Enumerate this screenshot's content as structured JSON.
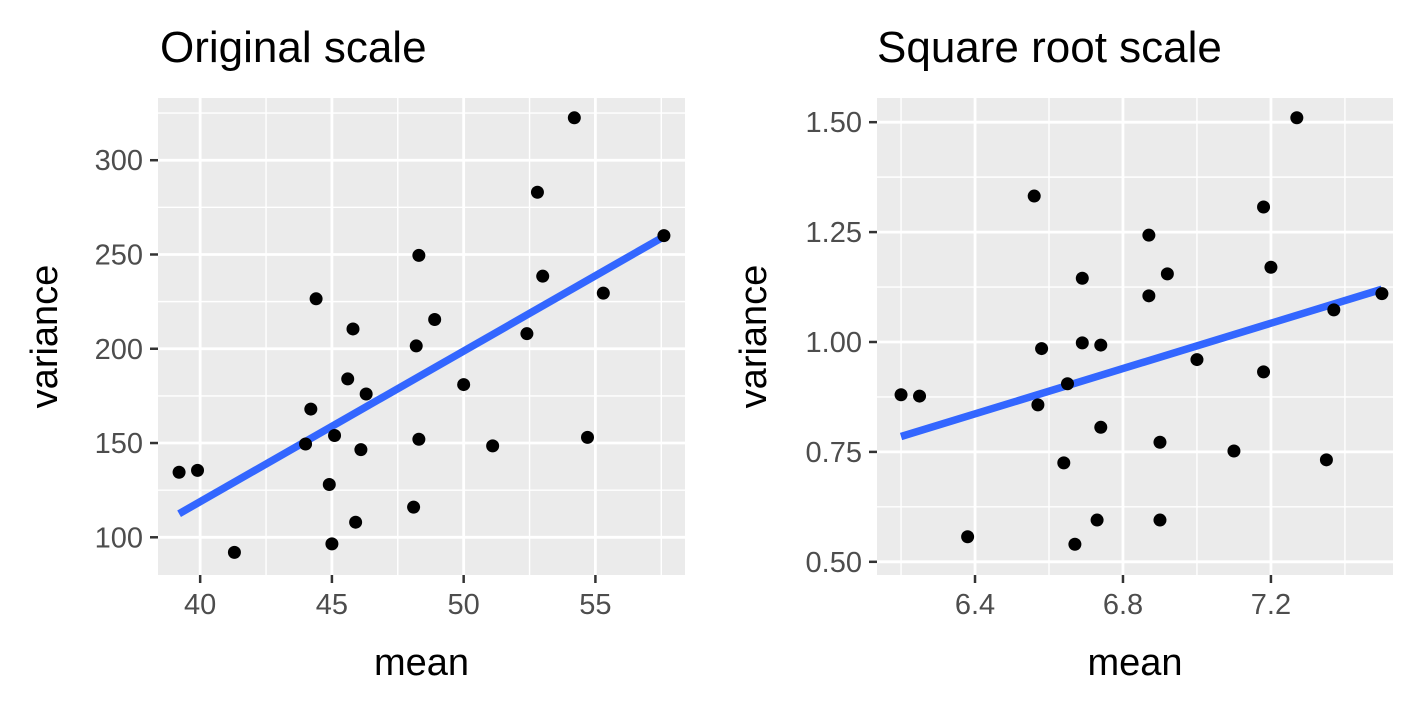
{
  "colors": {
    "panel_background": "#ebebeb",
    "grid_line": "#ffffff",
    "point": "#000000",
    "fit_line": "#3366ff",
    "tick_mark": "#333333",
    "tick_label": "#4d4d4d"
  },
  "chart_data": [
    {
      "type": "scatter",
      "title": "Original scale",
      "xlabel": "mean",
      "ylabel": "variance",
      "xlim": [
        38.4,
        58.4
      ],
      "ylim": [
        80,
        333
      ],
      "x_ticks": [
        40,
        45,
        50,
        55
      ],
      "x_tick_labels": [
        "40",
        "45",
        "50",
        "55"
      ],
      "y_ticks": [
        100,
        150,
        200,
        250,
        300
      ],
      "y_tick_labels": [
        "100",
        "150",
        "200",
        "250",
        "300"
      ],
      "grid": true,
      "legend": "none",
      "points": [
        [
          39.2,
          134.5
        ],
        [
          39.9,
          135.5
        ],
        [
          41.3,
          92
        ],
        [
          44.0,
          149.5
        ],
        [
          44.2,
          168
        ],
        [
          44.4,
          226.5
        ],
        [
          44.9,
          128
        ],
        [
          45.0,
          96.5
        ],
        [
          45.1,
          154
        ],
        [
          45.6,
          184
        ],
        [
          45.8,
          210.5
        ],
        [
          45.9,
          108
        ],
        [
          46.1,
          146.5
        ],
        [
          46.3,
          176
        ],
        [
          48.1,
          116
        ],
        [
          48.2,
          201.5
        ],
        [
          48.3,
          152
        ],
        [
          48.3,
          249.5
        ],
        [
          48.9,
          215.5
        ],
        [
          50.0,
          181
        ],
        [
          51.1,
          148.5
        ],
        [
          52.4,
          208
        ],
        [
          52.8,
          283
        ],
        [
          53.0,
          238.5
        ],
        [
          54.2,
          322.5
        ],
        [
          54.7,
          153
        ],
        [
          55.3,
          229.5
        ],
        [
          57.6,
          260
        ]
      ],
      "fit_line": {
        "x": [
          39.2,
          57.6
        ],
        "y": [
          112.5,
          259.5
        ]
      }
    },
    {
      "type": "scatter",
      "title": "Square root scale",
      "xlabel": "mean",
      "ylabel": "variance",
      "xlim": [
        6.135,
        7.53
      ],
      "ylim": [
        0.47,
        1.555
      ],
      "x_ticks": [
        6.4,
        6.8,
        7.2
      ],
      "x_tick_labels": [
        "6.4",
        "6.8",
        "7.2"
      ],
      "y_ticks": [
        0.5,
        0.75,
        1.0,
        1.25,
        1.5
      ],
      "y_tick_labels": [
        "0.50",
        "0.75",
        "1.00",
        "1.25",
        "1.50"
      ],
      "grid": true,
      "legend": "none",
      "points": [
        [
          6.2,
          0.88
        ],
        [
          6.25,
          0.877
        ],
        [
          6.38,
          0.557
        ],
        [
          6.56,
          1.332
        ],
        [
          6.57,
          0.857
        ],
        [
          6.58,
          0.985
        ],
        [
          6.64,
          0.725
        ],
        [
          6.65,
          0.905
        ],
        [
          6.67,
          0.54
        ],
        [
          6.69,
          0.998
        ],
        [
          6.69,
          1.145
        ],
        [
          6.73,
          0.595
        ],
        [
          6.74,
          0.993
        ],
        [
          6.74,
          0.806
        ],
        [
          6.87,
          1.105
        ],
        [
          6.87,
          1.243
        ],
        [
          6.9,
          0.772
        ],
        [
          6.9,
          0.595
        ],
        [
          6.92,
          1.155
        ],
        [
          7.0,
          0.96
        ],
        [
          7.1,
          0.752
        ],
        [
          7.18,
          1.307
        ],
        [
          7.18,
          0.932
        ],
        [
          7.2,
          1.17
        ],
        [
          7.27,
          1.51
        ],
        [
          7.35,
          0.732
        ],
        [
          7.37,
          1.073
        ],
        [
          7.5,
          1.11
        ]
      ],
      "fit_line": {
        "x": [
          6.2,
          7.5
        ],
        "y": [
          0.785,
          1.12
        ]
      }
    }
  ]
}
